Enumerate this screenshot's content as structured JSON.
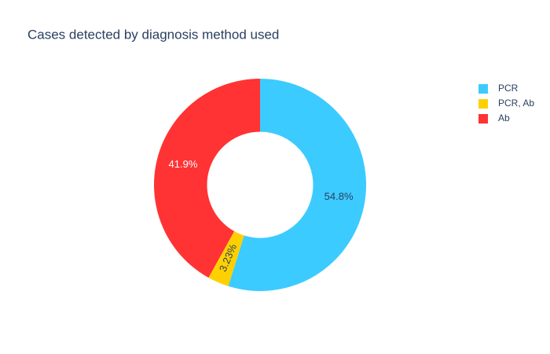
{
  "chart_data": {
    "type": "pie",
    "title": "Cases detected by diagnosis method used",
    "categories": [
      "Ab",
      "PCR, Ab",
      "PCR"
    ],
    "values": [
      41.9,
      3.23,
      54.8
    ],
    "value_labels": [
      "41.9%",
      "3.23%",
      "54.8%"
    ],
    "colors": [
      "#ff3333",
      "#ffd000",
      "#3ccbff"
    ],
    "label_colors": [
      "#ffffff",
      "#2a3f5f",
      "#2a3f5f"
    ],
    "hole": 0.5,
    "direction": "counterclockwise",
    "legend": "top-right",
    "legend_order": "reversed"
  }
}
